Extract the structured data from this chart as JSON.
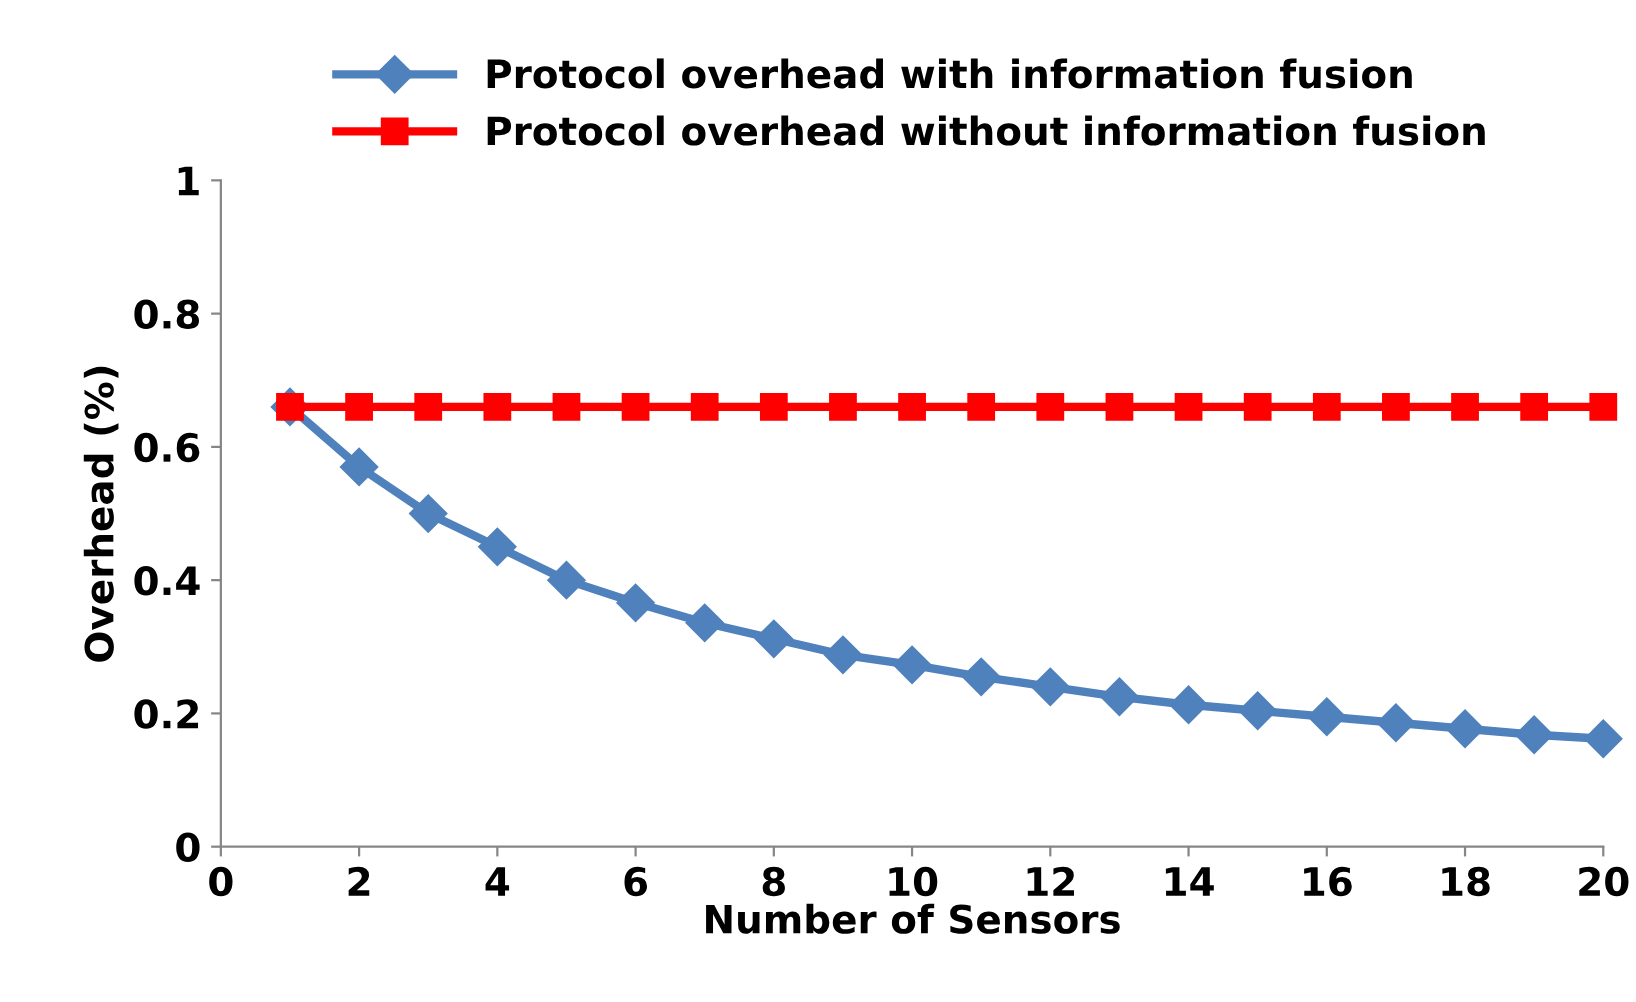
{
  "chart_data": {
    "type": "line",
    "xlabel": "Number of Sensors",
    "ylabel": "Overhead (%)",
    "x": [
      1,
      2,
      3,
      4,
      5,
      6,
      7,
      8,
      9,
      10,
      11,
      12,
      13,
      14,
      15,
      16,
      17,
      18,
      19,
      20
    ],
    "series": [
      {
        "name": "Protocol overhead with information fusion",
        "color": "#4f81bd",
        "marker": "diamond",
        "values": [
          0.66,
          0.57,
          0.5,
          0.45,
          0.4,
          0.366,
          0.336,
          0.312,
          0.288,
          0.273,
          0.255,
          0.24,
          0.225,
          0.213,
          0.204,
          0.195,
          0.186,
          0.177,
          0.168,
          0.162
        ]
      },
      {
        "name": "Protocol overhead without information fusion",
        "color": "#ff0000",
        "marker": "square",
        "values": [
          0.66,
          0.66,
          0.66,
          0.66,
          0.66,
          0.66,
          0.66,
          0.66,
          0.66,
          0.66,
          0.66,
          0.66,
          0.66,
          0.66,
          0.66,
          0.66,
          0.66,
          0.66,
          0.66,
          0.66
        ]
      }
    ],
    "xlim": [
      0,
      20
    ],
    "xticks": [
      0,
      2,
      4,
      6,
      8,
      10,
      12,
      14,
      16,
      18,
      20
    ],
    "ylim": [
      0,
      1
    ],
    "yticks": [
      0,
      0.2,
      0.4,
      0.6,
      0.8,
      1
    ],
    "grid": false,
    "legend": "top",
    "line_style": "solid"
  }
}
